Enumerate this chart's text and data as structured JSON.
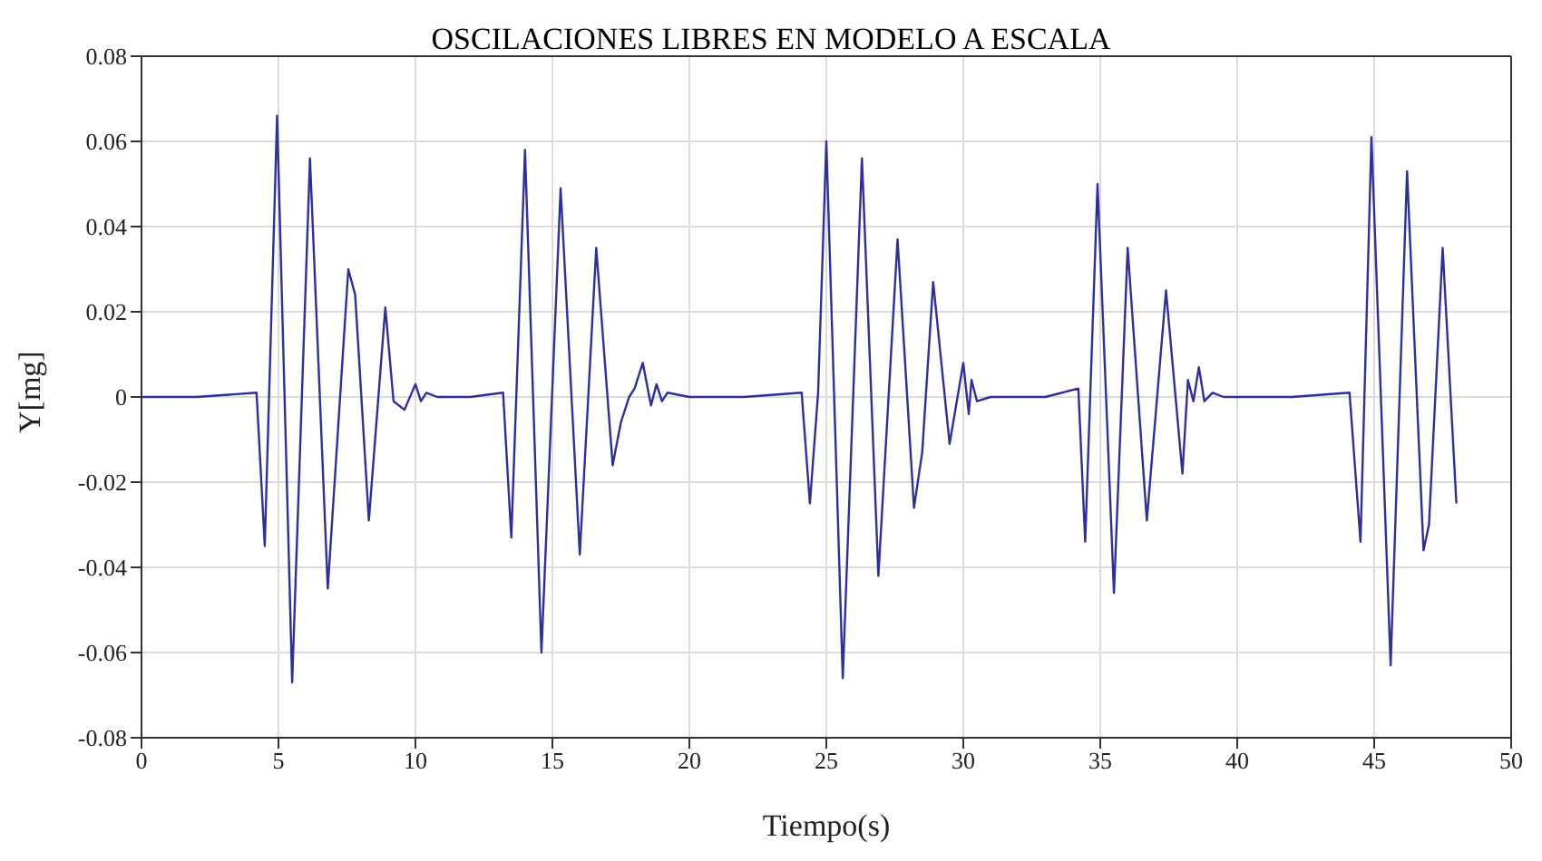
{
  "chart_data": {
    "type": "line",
    "title": "OSCILACIONES LIBRES EN MODELO A ESCALA",
    "xlabel": "Tiempo(s)",
    "ylabel": "Y[mg]",
    "xlim": [
      0,
      50
    ],
    "xticks": [
      0,
      5,
      10,
      15,
      20,
      25,
      30,
      35,
      40,
      45,
      50
    ],
    "ylim": [
      -0.08,
      0.08
    ],
    "yticks": [
      -0.08,
      -0.06,
      -0.04,
      -0.02,
      0,
      0.02,
      0.04,
      0.06,
      0.08
    ],
    "grid": true,
    "marker": "none",
    "line_style": "solid",
    "series": [
      {
        "color": "#2e2e9e",
        "x": [
          0,
          2,
          4.2,
          4.5,
          4.95,
          5.5,
          6.15,
          6.8,
          7.55,
          7.8,
          8.3,
          8.9,
          9.2,
          9.6,
          10.0,
          10.2,
          10.4,
          10.8,
          12,
          13.2,
          13.5,
          14.0,
          14.6,
          15.3,
          16.0,
          16.6,
          17.2,
          17.5,
          17.8,
          18.0,
          18.3,
          18.6,
          18.8,
          19.0,
          19.2,
          20,
          22,
          24.1,
          24.4,
          24.7,
          25.0,
          25.6,
          26.3,
          26.9,
          27.6,
          28.2,
          28.5,
          28.9,
          29.5,
          30.0,
          30.2,
          30.3,
          30.5,
          31,
          33,
          34.2,
          34.45,
          34.9,
          35.5,
          36.0,
          36.7,
          37.4,
          38.0,
          38.2,
          38.4,
          38.6,
          38.8,
          39.1,
          39.5,
          42,
          44.1,
          44.5,
          44.9,
          45.6,
          46.2,
          46.8,
          47.0,
          47.5,
          48.0
        ],
        "values": [
          0,
          0,
          0.001,
          -0.035,
          0.066,
          -0.067,
          0.056,
          -0.045,
          0.03,
          0.024,
          -0.029,
          0.021,
          -0.001,
          -0.003,
          0.003,
          -0.001,
          0.001,
          0,
          0,
          0.001,
          -0.033,
          0.058,
          -0.06,
          0.049,
          -0.037,
          0.035,
          -0.016,
          -0.006,
          0,
          0.002,
          0.008,
          -0.002,
          0.003,
          -0.001,
          0.001,
          0,
          0,
          0.001,
          -0.025,
          0.001,
          0.06,
          -0.066,
          0.056,
          -0.042,
          0.037,
          -0.026,
          -0.013,
          0.027,
          -0.011,
          0.008,
          -0.004,
          0.004,
          -0.001,
          0,
          0,
          0.002,
          -0.034,
          0.05,
          -0.046,
          0.035,
          -0.029,
          0.025,
          -0.018,
          0.004,
          -0.001,
          0.007,
          -0.001,
          0.001,
          0,
          0,
          0.001,
          -0.034,
          0.061,
          -0.063,
          0.053,
          -0.036,
          -0.03,
          0.035,
          -0.025
        ]
      }
    ]
  }
}
